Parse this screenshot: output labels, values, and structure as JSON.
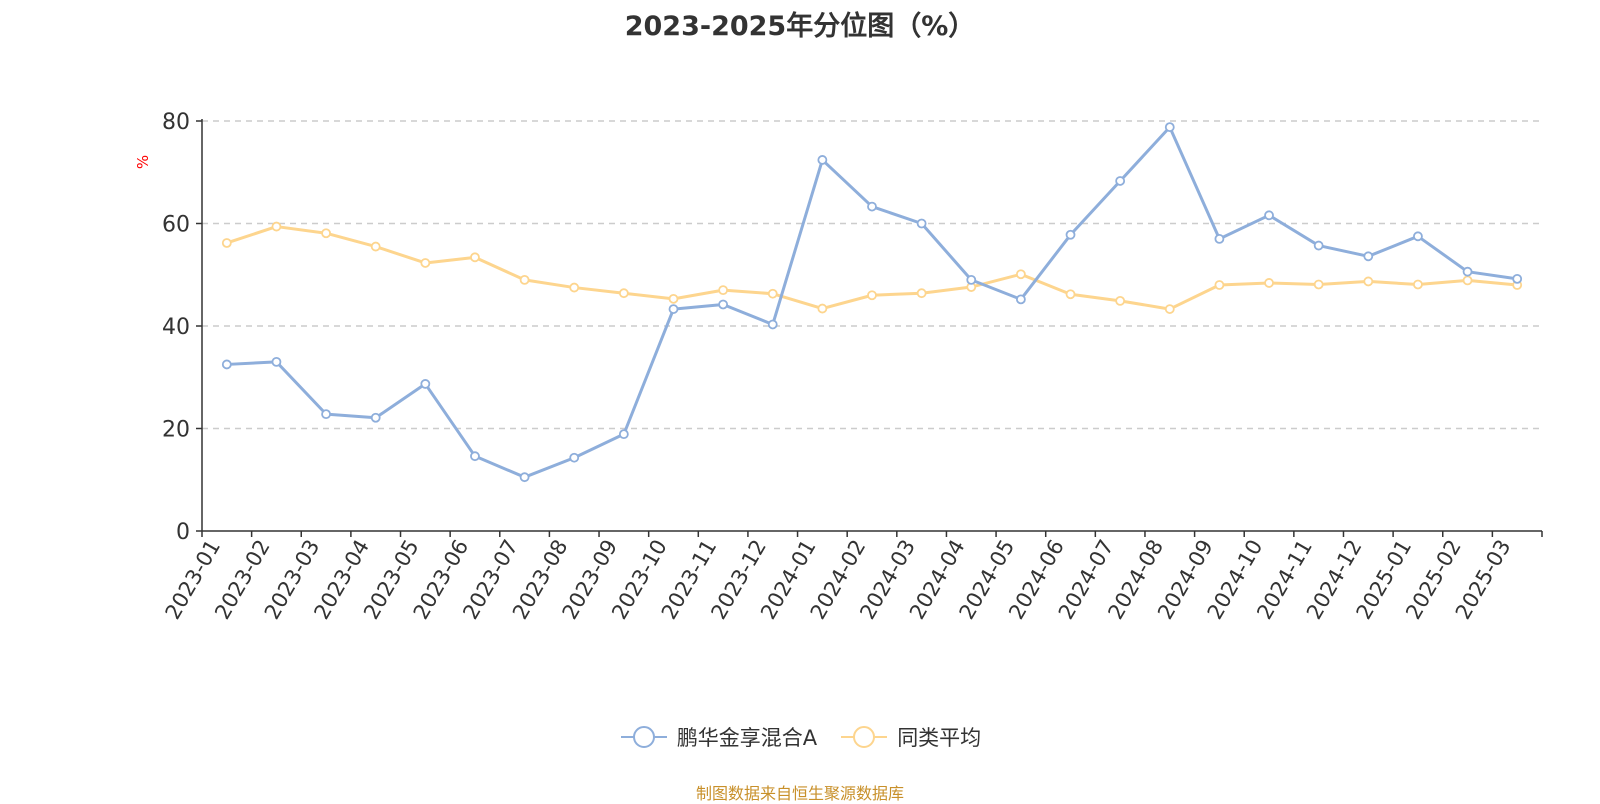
{
  "title": "2023-2025年分位图（%）",
  "source": "制图数据来自恒生聚源数据库",
  "colors": {
    "fund": "#8eaedb",
    "category_avg": "#fdd58e",
    "unit": "#ff0000",
    "source": "#c8902a",
    "axis": "#333333",
    "grid": "#cccccc"
  },
  "chart_data": {
    "type": "line",
    "title": "2023-2025年分位图（%）",
    "ylabel": "%",
    "ylim": [
      0,
      80
    ],
    "yticks": [
      0,
      20,
      40,
      60,
      80
    ],
    "grid": "horizontal dashed",
    "legend_position": "bottom",
    "categories": [
      "2023-01",
      "2023-02",
      "2023-03",
      "2023-04",
      "2023-05",
      "2023-06",
      "2023-07",
      "2023-08",
      "2023-09",
      "2023-10",
      "2023-11",
      "2023-12",
      "2024-01",
      "2024-02",
      "2024-03",
      "2024-04",
      "2024-05",
      "2024-06",
      "2024-07",
      "2024-08",
      "2024-09",
      "2024-10",
      "2024-11",
      "2024-12",
      "2025-01",
      "2025-02",
      "2025-03"
    ],
    "series": [
      {
        "name": "鹏华金享混合A",
        "values": [
          32.5,
          33.0,
          22.8,
          22.1,
          28.7,
          14.6,
          10.5,
          14.3,
          18.9,
          43.3,
          44.2,
          40.3,
          72.4,
          63.3,
          60.0,
          49.0,
          45.2,
          57.8,
          68.3,
          78.8,
          57.0,
          61.6,
          55.7,
          53.6,
          57.5,
          50.6,
          49.2
        ]
      },
      {
        "name": "同类平均",
        "values": [
          56.2,
          59.4,
          58.1,
          55.5,
          52.3,
          53.4,
          49.0,
          47.5,
          46.4,
          45.3,
          47.0,
          46.3,
          43.4,
          46.0,
          46.4,
          47.6,
          50.1,
          46.2,
          44.9,
          43.3,
          48.0,
          48.4,
          48.1,
          48.7,
          48.1,
          48.9,
          48.0
        ]
      }
    ]
  }
}
